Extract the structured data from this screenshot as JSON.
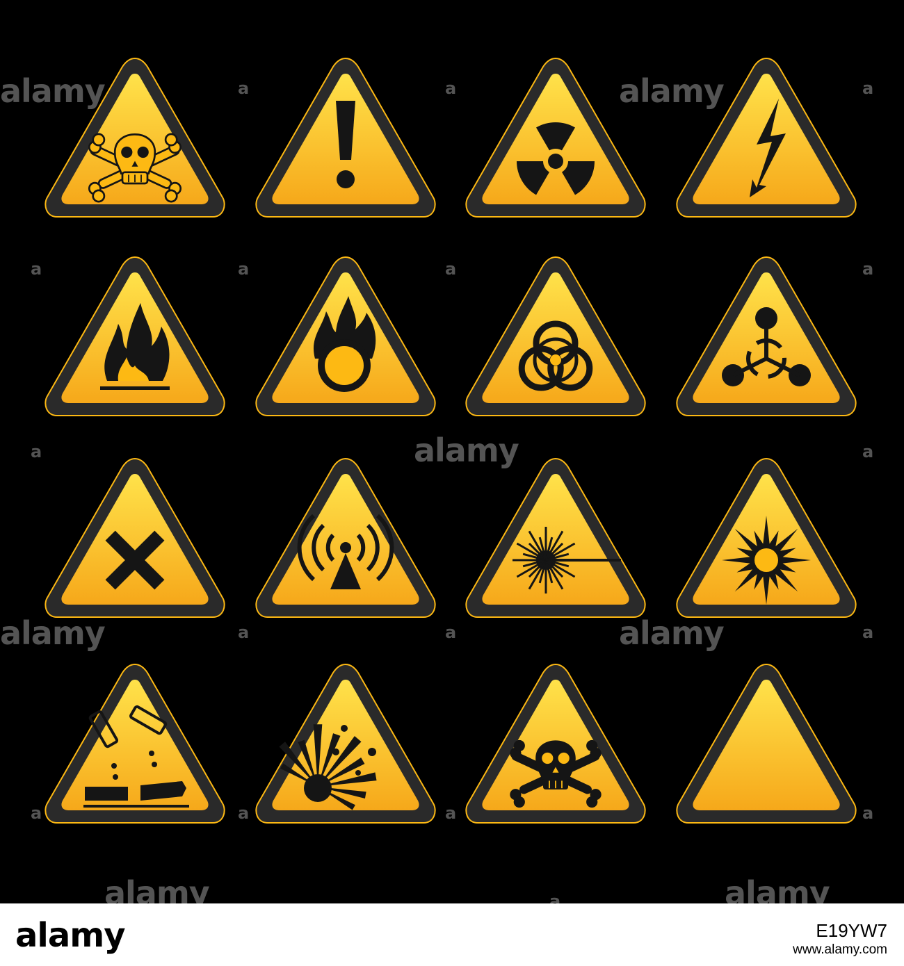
{
  "signs": [
    {
      "id": "toxic",
      "icon": "skull-crossbones-outline-icon"
    },
    {
      "id": "general-warning",
      "icon": "exclamation-icon"
    },
    {
      "id": "radioactive",
      "icon": "radiation-trefoil-icon"
    },
    {
      "id": "electricity",
      "icon": "lightning-bolt-icon"
    },
    {
      "id": "flammable",
      "icon": "flame-icon"
    },
    {
      "id": "oxidizing",
      "icon": "flame-over-circle-icon"
    },
    {
      "id": "biohazard",
      "icon": "biohazard-icon"
    },
    {
      "id": "chemical-weapon",
      "icon": "chemical-molecule-icon"
    },
    {
      "id": "harmful-irritant",
      "icon": "x-cross-icon"
    },
    {
      "id": "non-ionizing-radiation",
      "icon": "radio-wave-icon"
    },
    {
      "id": "laser",
      "icon": "laser-beam-icon"
    },
    {
      "id": "optical-radiation",
      "icon": "sunburst-icon"
    },
    {
      "id": "corrosive",
      "icon": "corrosive-hand-icon"
    },
    {
      "id": "explosive",
      "icon": "explosion-icon"
    },
    {
      "id": "poison",
      "icon": "skull-crossbones-icon"
    },
    {
      "id": "blank",
      "icon": "none"
    }
  ],
  "colors": {
    "background": "#000000",
    "sign_yellow": "#fdb913",
    "sign_border": "#2a2a2a",
    "symbol": "#151515"
  },
  "watermark": {
    "brand": "alamy",
    "short": "a"
  },
  "footer": {
    "logo": "alamy",
    "image_code": "E19YW7",
    "url": "www.alamy.com"
  }
}
